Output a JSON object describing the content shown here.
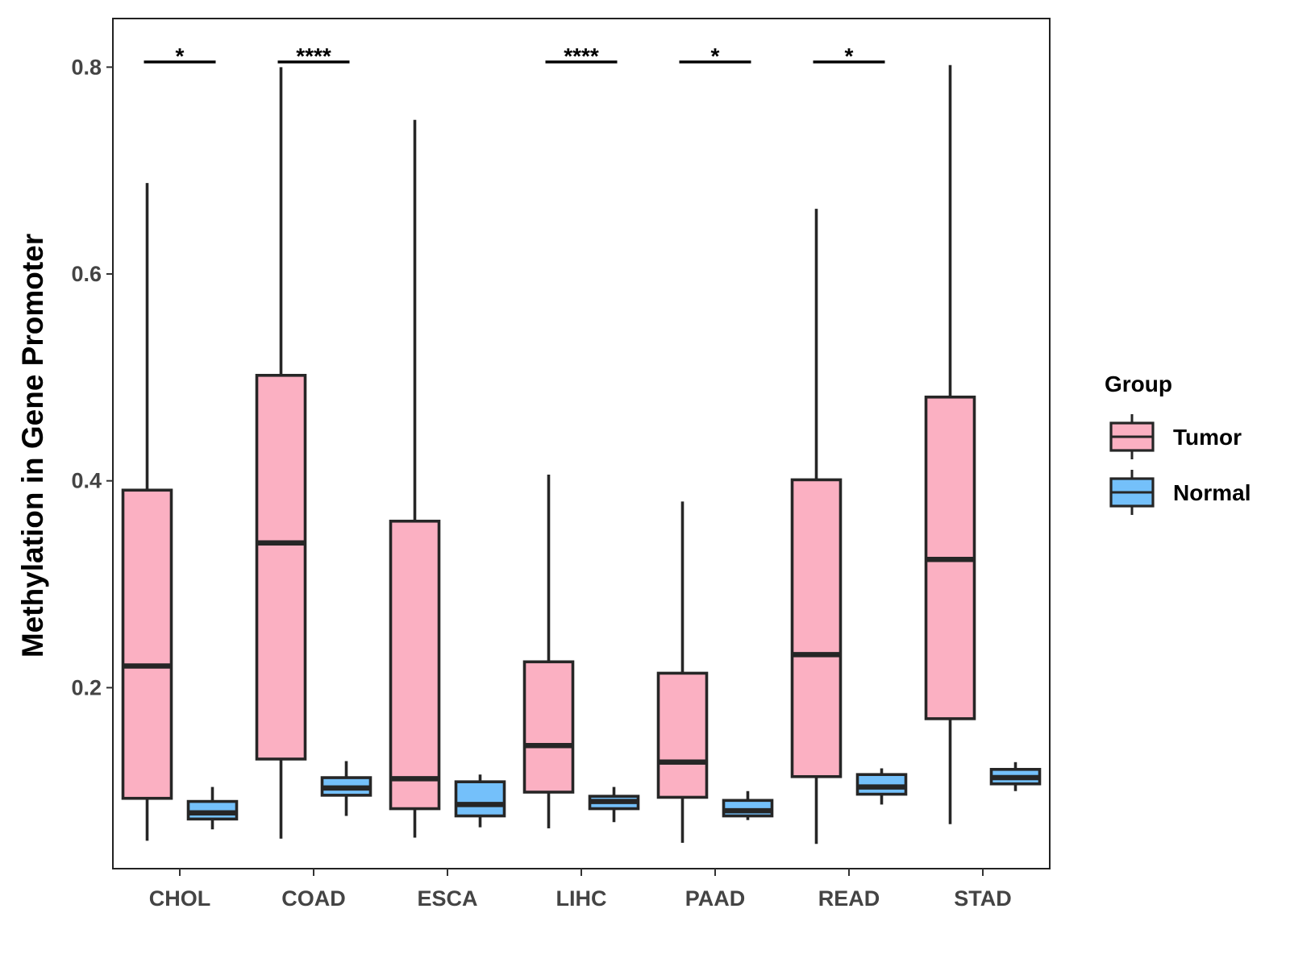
{
  "chart_data": {
    "type": "boxplot",
    "title": "",
    "xlabel": "",
    "ylabel": "Methylation in Gene Promoter",
    "ylim": [
      0.025,
      0.847
    ],
    "yticks": [
      0.2,
      0.4,
      0.6,
      0.8
    ],
    "ytick_labels": [
      "0.2",
      "0.4",
      "0.6",
      "0.8"
    ],
    "categories": [
      "CHOL",
      "COAD",
      "ESCA",
      "LIHC",
      "PAAD",
      "READ",
      "STAD"
    ],
    "legend": {
      "title": "Group",
      "position": "right",
      "entries": [
        {
          "name": "Tumor",
          "color": "#FBB0C2"
        },
        {
          "name": "Normal",
          "color": "#74C0FA"
        }
      ]
    },
    "series": [
      {
        "name": "Tumor",
        "color": "#FBB0C2",
        "boxes": [
          {
            "category": "CHOL",
            "whisker_low": 0.052,
            "q1": 0.093,
            "median": 0.221,
            "q3": 0.391,
            "whisker_high": 0.688
          },
          {
            "category": "COAD",
            "whisker_low": 0.054,
            "q1": 0.131,
            "median": 0.34,
            "q3": 0.502,
            "whisker_high": 0.8
          },
          {
            "category": "ESCA",
            "whisker_low": 0.055,
            "q1": 0.083,
            "median": 0.112,
            "q3": 0.361,
            "whisker_high": 0.749
          },
          {
            "category": "LIHC",
            "whisker_low": 0.064,
            "q1": 0.099,
            "median": 0.144,
            "q3": 0.225,
            "whisker_high": 0.406
          },
          {
            "category": "PAAD",
            "whisker_low": 0.05,
            "q1": 0.094,
            "median": 0.128,
            "q3": 0.214,
            "whisker_high": 0.38
          },
          {
            "category": "READ",
            "whisker_low": 0.049,
            "q1": 0.114,
            "median": 0.232,
            "q3": 0.401,
            "whisker_high": 0.663
          },
          {
            "category": "STAD",
            "whisker_low": 0.068,
            "q1": 0.17,
            "median": 0.324,
            "q3": 0.481,
            "whisker_high": 0.802
          }
        ]
      },
      {
        "name": "Normal",
        "color": "#74C0FA",
        "boxes": [
          {
            "category": "CHOL",
            "whisker_low": 0.063,
            "q1": 0.073,
            "median": 0.079,
            "q3": 0.09,
            "whisker_high": 0.104
          },
          {
            "category": "COAD",
            "whisker_low": 0.076,
            "q1": 0.096,
            "median": 0.103,
            "q3": 0.113,
            "whisker_high": 0.129
          },
          {
            "category": "ESCA",
            "whisker_low": 0.065,
            "q1": 0.076,
            "median": 0.087,
            "q3": 0.109,
            "whisker_high": 0.116
          },
          {
            "category": "LIHC",
            "whisker_low": 0.07,
            "q1": 0.083,
            "median": 0.09,
            "q3": 0.095,
            "whisker_high": 0.104
          },
          {
            "category": "PAAD",
            "whisker_low": 0.072,
            "q1": 0.076,
            "median": 0.081,
            "q3": 0.091,
            "whisker_high": 0.1
          },
          {
            "category": "READ",
            "whisker_low": 0.087,
            "q1": 0.097,
            "median": 0.104,
            "q3": 0.116,
            "whisker_high": 0.122
          },
          {
            "category": "STAD",
            "whisker_low": 0.1,
            "q1": 0.107,
            "median": 0.113,
            "q3": 0.121,
            "whisker_high": 0.128
          }
        ]
      }
    ],
    "significance": [
      {
        "category": "CHOL",
        "label": "*"
      },
      {
        "category": "COAD",
        "label": "****"
      },
      {
        "category": "LIHC",
        "label": "****"
      },
      {
        "category": "PAAD",
        "label": "*"
      },
      {
        "category": "READ",
        "label": "*"
      }
    ],
    "significance_y": 0.805,
    "grid": false
  }
}
